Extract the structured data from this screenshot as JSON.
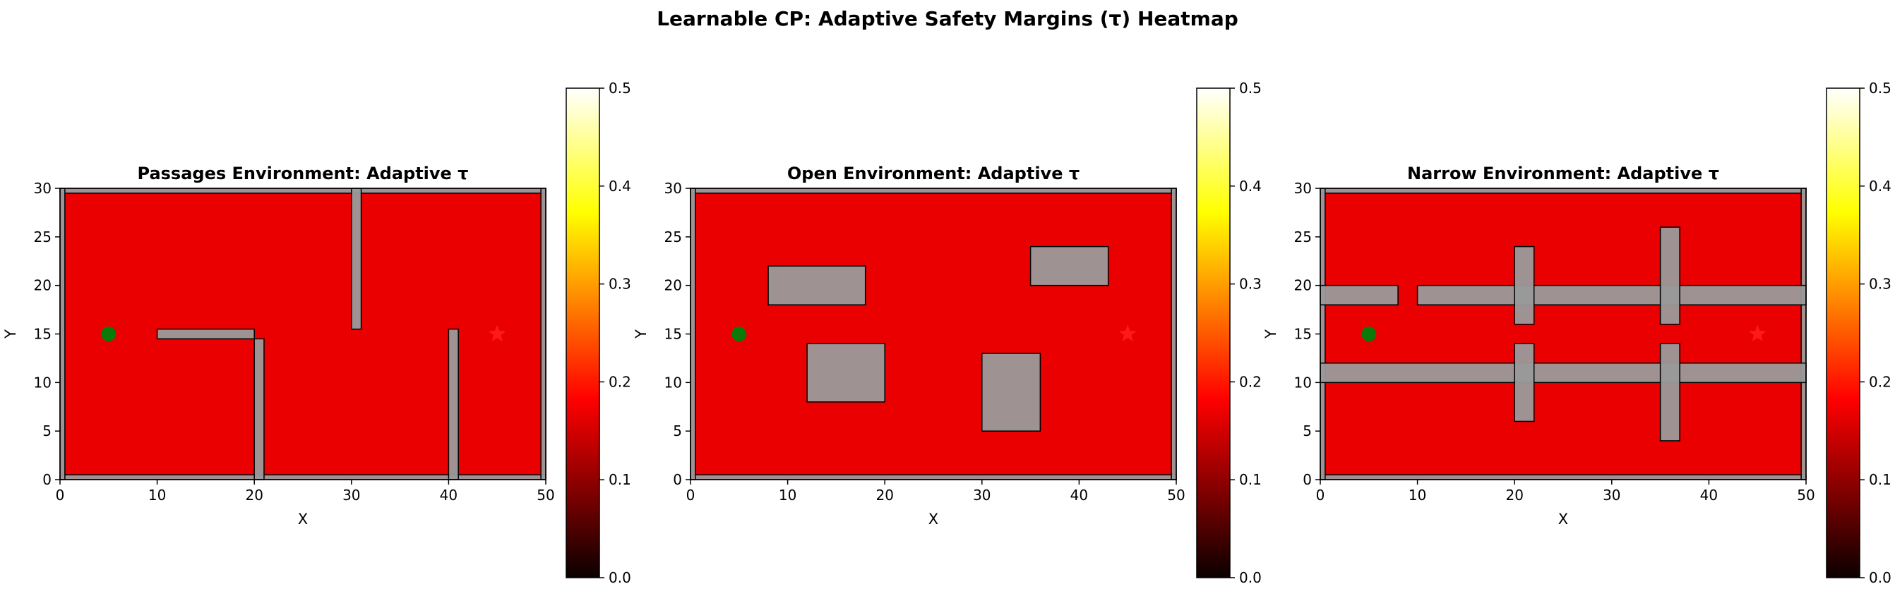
{
  "suptitle": "Learnable CP: Adaptive Safety Margins (τ) Heatmap",
  "colors": {
    "heat_fill": "#d40000",
    "obstacle": "#9a9a9a",
    "boundary": "#9a9a9a",
    "start": "#0a7a0a",
    "goal": "#ff1a1a"
  },
  "colormap": "hot",
  "chart_data": [
    {
      "type": "heatmap",
      "title": "Passages Environment: Adaptive τ",
      "xlabel": "X",
      "ylabel": "Y",
      "xlim": [
        0,
        50
      ],
      "ylim": [
        0,
        30
      ],
      "xticks": [
        0,
        10,
        20,
        30,
        40,
        50
      ],
      "yticks": [
        0,
        5,
        10,
        15,
        20,
        25,
        30
      ],
      "tau_value": 0.16,
      "start": [
        5,
        15
      ],
      "goal": [
        45,
        15
      ],
      "obstacles": [
        {
          "x": 0,
          "y": 0,
          "w": 50,
          "h": 0.5
        },
        {
          "x": 0,
          "y": 29.5,
          "w": 50,
          "h": 0.5
        },
        {
          "x": 0,
          "y": 0,
          "w": 0.5,
          "h": 30
        },
        {
          "x": 49.5,
          "y": 0,
          "w": 0.5,
          "h": 30
        },
        {
          "x": 10,
          "y": 14.5,
          "w": 10,
          "h": 1
        },
        {
          "x": 20,
          "y": 0,
          "w": 1,
          "h": 14.5
        },
        {
          "x": 30,
          "y": 15.5,
          "w": 1,
          "h": 14.5
        },
        {
          "x": 40,
          "y": 0,
          "w": 1,
          "h": 15.5
        }
      ],
      "colorbar": {
        "min": 0.0,
        "max": 0.5,
        "ticks": [
          "0.0",
          "0.1",
          "0.2",
          "0.3",
          "0.4",
          "0.5"
        ]
      }
    },
    {
      "type": "heatmap",
      "title": "Open Environment: Adaptive τ",
      "xlabel": "X",
      "ylabel": "Y",
      "xlim": [
        0,
        50
      ],
      "ylim": [
        0,
        30
      ],
      "xticks": [
        0,
        10,
        20,
        30,
        40,
        50
      ],
      "yticks": [
        0,
        5,
        10,
        15,
        20,
        25,
        30
      ],
      "tau_value": 0.16,
      "start": [
        5,
        15
      ],
      "goal": [
        45,
        15
      ],
      "obstacles": [
        {
          "x": 0,
          "y": 0,
          "w": 50,
          "h": 0.5
        },
        {
          "x": 0,
          "y": 29.5,
          "w": 50,
          "h": 0.5
        },
        {
          "x": 0,
          "y": 0,
          "w": 0.5,
          "h": 30
        },
        {
          "x": 49.5,
          "y": 0,
          "w": 0.5,
          "h": 30
        },
        {
          "x": 8,
          "y": 18,
          "w": 10,
          "h": 4
        },
        {
          "x": 12,
          "y": 8,
          "w": 8,
          "h": 6
        },
        {
          "x": 30,
          "y": 5,
          "w": 6,
          "h": 8
        },
        {
          "x": 35,
          "y": 20,
          "w": 8,
          "h": 4
        }
      ],
      "colorbar": {
        "min": 0.0,
        "max": 0.5,
        "ticks": [
          "0.0",
          "0.1",
          "0.2",
          "0.3",
          "0.4",
          "0.5"
        ]
      }
    },
    {
      "type": "heatmap",
      "title": "Narrow Environment: Adaptive τ",
      "xlabel": "X",
      "ylabel": "Y",
      "xlim": [
        0,
        50
      ],
      "ylim": [
        0,
        30
      ],
      "xticks": [
        0,
        10,
        20,
        30,
        40,
        50
      ],
      "yticks": [
        0,
        5,
        10,
        15,
        20,
        25,
        30
      ],
      "tau_value": 0.16,
      "start": [
        5,
        15
      ],
      "goal": [
        45,
        15
      ],
      "obstacles": [
        {
          "x": 0,
          "y": 0,
          "w": 50,
          "h": 0.5
        },
        {
          "x": 0,
          "y": 29.5,
          "w": 50,
          "h": 0.5
        },
        {
          "x": 0,
          "y": 0,
          "w": 0.5,
          "h": 30
        },
        {
          "x": 49.5,
          "y": 0,
          "w": 0.5,
          "h": 30
        },
        {
          "x": 0,
          "y": 18,
          "w": 8,
          "h": 2
        },
        {
          "x": 10,
          "y": 18,
          "w": 40,
          "h": 2
        },
        {
          "x": 0,
          "y": 10,
          "w": 50,
          "h": 2
        },
        {
          "x": 20,
          "y": 16,
          "w": 2,
          "h": 8
        },
        {
          "x": 20,
          "y": 6,
          "w": 2,
          "h": 8
        },
        {
          "x": 35,
          "y": 16,
          "w": 2,
          "h": 10
        },
        {
          "x": 35,
          "y": 4,
          "w": 2,
          "h": 10
        }
      ],
      "colorbar": {
        "min": 0.0,
        "max": 0.5,
        "ticks": [
          "0.0",
          "0.1",
          "0.2",
          "0.3",
          "0.4",
          "0.5"
        ]
      }
    }
  ]
}
